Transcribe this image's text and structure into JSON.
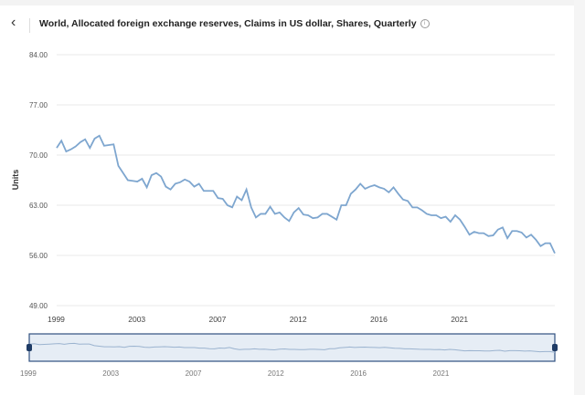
{
  "header": {
    "title": "World, Allocated foreign exchange reserves, Claims in US dollar, Shares, Quarterly",
    "back_icon": "chevron-left-icon",
    "info_icon": "info-icon"
  },
  "chart_data": {
    "type": "line",
    "title": "World, Allocated foreign exchange reserves, Claims in US dollar, Shares, Quarterly",
    "xlabel": "",
    "ylabel": "Units",
    "ylim": [
      49,
      84
    ],
    "yticks": [
      "84.00",
      "77.00",
      "70.00",
      "63.00",
      "56.00",
      "49.00"
    ],
    "ytick_values": [
      84,
      77,
      70,
      63,
      56,
      49
    ],
    "xtick_labels": [
      "1999",
      "2003",
      "2007",
      "2012",
      "2016",
      "2021"
    ],
    "xtick_index": [
      0,
      17,
      34,
      51,
      68,
      85
    ],
    "navigator_labels": [
      "1999",
      "2003",
      "2007",
      "2012",
      "2016",
      "2021"
    ],
    "grid": true,
    "color": "#7ea6cf",
    "series": [
      {
        "name": "Claims in US dollar share",
        "start": "1999Q1",
        "frequency": "quarterly",
        "values": [
          71.0,
          72.0,
          70.5,
          70.8,
          71.2,
          71.8,
          72.2,
          71.0,
          72.3,
          72.7,
          71.3,
          71.4,
          71.5,
          68.5,
          67.5,
          66.5,
          66.4,
          66.3,
          66.7,
          65.5,
          67.2,
          67.5,
          67.0,
          65.6,
          65.2,
          66.0,
          66.2,
          66.6,
          66.3,
          65.6,
          66.0,
          65.0,
          65.0,
          65.0,
          64.0,
          63.9,
          63.0,
          62.7,
          64.2,
          63.7,
          65.2,
          62.7,
          61.3,
          61.8,
          61.8,
          62.8,
          61.8,
          62.0,
          61.3,
          60.8,
          62.0,
          62.6,
          61.7,
          61.6,
          61.2,
          61.3,
          61.8,
          61.8,
          61.4,
          61.0,
          63.0,
          63.0,
          64.6,
          65.2,
          66.0,
          65.3,
          65.6,
          65.8,
          65.5,
          65.3,
          64.8,
          65.5,
          64.6,
          63.8,
          63.6,
          62.7,
          62.7,
          62.3,
          61.8,
          61.6,
          61.6,
          61.2,
          61.4,
          60.7,
          61.6,
          61.0,
          60.0,
          58.9,
          59.3,
          59.1,
          59.1,
          58.7,
          58.8,
          59.6,
          59.9,
          58.4,
          59.4,
          59.4,
          59.2,
          58.5,
          58.9,
          58.2,
          57.3,
          57.7,
          57.7,
          56.3
        ]
      }
    ]
  }
}
